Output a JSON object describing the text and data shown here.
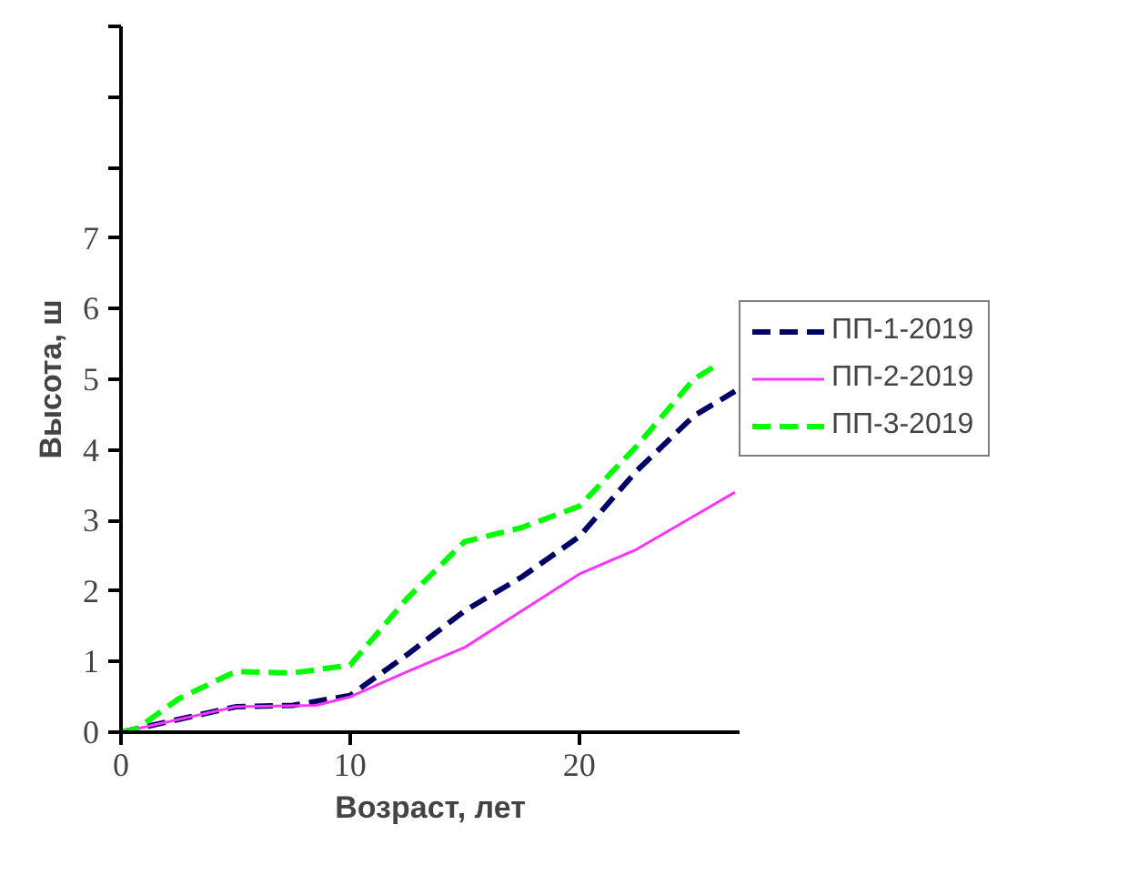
{
  "chart_data": {
    "type": "line",
    "xlabel": "Возраст, лет",
    "ylabel": "Высота, ш",
    "xlim": [
      0,
      27
    ],
    "xticks": [
      0,
      10,
      20
    ],
    "ylim": [
      0,
      10
    ],
    "yticks": [
      0,
      1,
      2,
      3,
      4,
      5,
      6,
      7,
      {
        "value": 8,
        "label": null
      },
      {
        "value": 9,
        "label": null
      },
      {
        "value": 10,
        "label": null
      }
    ],
    "grid": false,
    "legend": "right",
    "marker": "none",
    "series": [
      {
        "name": "ПП-1-2019",
        "color": "#000066",
        "line_style": "dashed",
        "x": [
          0,
          5,
          7.5,
          10,
          12.5,
          15,
          17.5,
          20,
          22.5,
          25,
          26.8
        ],
        "values": [
          0,
          0.36,
          0.38,
          0.52,
          1.1,
          1.72,
          2.2,
          2.77,
          3.7,
          4.48,
          4.83
        ]
      },
      {
        "name": "ПП-2-2019",
        "color": "#ff33ff",
        "line_style": "solid",
        "x": [
          0,
          5,
          8.5,
          10,
          12.5,
          15,
          17.5,
          20,
          22.5,
          25,
          26.8
        ],
        "values": [
          0,
          0.36,
          0.38,
          0.5,
          0.86,
          1.2,
          1.72,
          2.24,
          2.59,
          3.06,
          3.4
        ]
      },
      {
        "name": "ПП-3-2019",
        "color": "#00ff00",
        "line_style": "dashed",
        "x": [
          0,
          0.7,
          2.5,
          5,
          7.5,
          10,
          12.5,
          15,
          17.5,
          20,
          22.5,
          25,
          26
        ],
        "values": [
          0,
          0.05,
          0.47,
          0.86,
          0.84,
          0.95,
          1.9,
          2.7,
          2.9,
          3.2,
          4.05,
          5.0,
          5.2
        ]
      }
    ]
  }
}
